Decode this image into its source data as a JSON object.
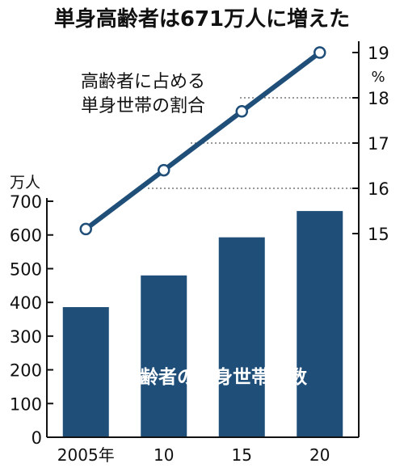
{
  "chart_data": {
    "type": "bar+line",
    "title": "単身高齢者は671万人に増えた",
    "categories": [
      "2005年",
      "10",
      "15",
      "20"
    ],
    "bars": {
      "name": "高齢者の単身世帯人数",
      "unit": "万人",
      "values": [
        386,
        480,
        593,
        671
      ],
      "ylim": [
        0,
        700
      ],
      "ticks": [
        0,
        100,
        200,
        300,
        400,
        500,
        600,
        700
      ],
      "color": "#1f4e79"
    },
    "line": {
      "name_lines": [
        "高齢者に占める",
        "単身世帯の割合"
      ],
      "unit": "%",
      "values": [
        15.1,
        16.4,
        17.7,
        19.0
      ],
      "ylim": [
        15,
        19
      ],
      "ticks": [
        15,
        16,
        17,
        18,
        19
      ],
      "color": "#1f4e79"
    },
    "grid": "dotted lines at right-axis ticks"
  }
}
